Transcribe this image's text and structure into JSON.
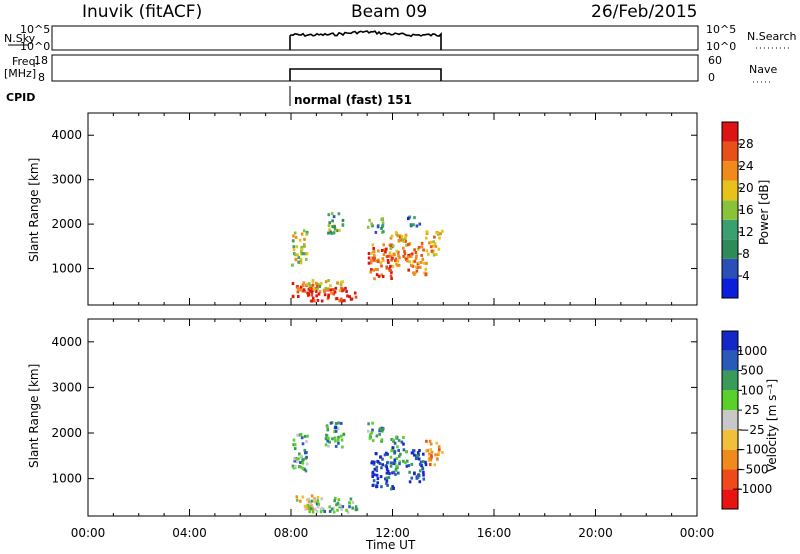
{
  "header": {
    "station": "Inuvik  (fitACF)",
    "beam": "Beam 09",
    "date": "26/Feb/2015"
  },
  "top_panels": {
    "nsky_label": "N.Sky",
    "nsky_ticks": [
      "10^5",
      "10^0"
    ],
    "nsearch_label": "N.Search",
    "nsearch_ticks": [
      "10^5",
      "10^0"
    ],
    "freq_label_1": "Freq.",
    "freq_label_2": "[MHz]",
    "freq_ticks": [
      "18",
      "8"
    ],
    "nave_label": "Nave",
    "nave_ticks": [
      "60",
      "0"
    ],
    "cpid_label": "CPID",
    "cpid_text": "normal (fast) 151"
  },
  "x_axis": {
    "label": "Time UT",
    "ticks": [
      "00:00",
      "04:00",
      "08:00",
      "12:00",
      "16:00",
      "20:00",
      "00:00"
    ]
  },
  "colors": {
    "power": [
      "#0a1edc",
      "#2a4fb8",
      "#2f8a5a",
      "#3aa070",
      "#8ac23a",
      "#e8c21a",
      "#f08a1a",
      "#e8501a",
      "#dc1414"
    ],
    "velocity": [
      "#e81414",
      "#f04a1a",
      "#f08a1a",
      "#f0c03a",
      "#c8c8c8",
      "#5ad02a",
      "#3a9a5a",
      "#2a5ab8",
      "#1428c8"
    ]
  },
  "chart_data": [
    {
      "type": "heatmap",
      "title": "Power",
      "xlabel": "Time UT",
      "ylabel": "Slant Range [km]",
      "xlim": [
        0,
        24
      ],
      "ylim": [
        180,
        4500
      ],
      "yticks": [
        "4000",
        "3000",
        "2000",
        "1000"
      ],
      "colorbar": {
        "label": "Power [dB]",
        "ticks": [
          "28",
          "24",
          "20",
          "16",
          "12",
          "8",
          "4"
        ]
      },
      "data_window_hours": [
        8,
        14
      ],
      "blobs": [
        {
          "t": 8.3,
          "r": 1500,
          "dt": 0.4,
          "dr": 500,
          "v": 0.55
        },
        {
          "t": 8.4,
          "r": 500,
          "dt": 0.6,
          "dr": 250,
          "v": 0.9
        },
        {
          "t": 9.6,
          "r": 450,
          "dt": 1.2,
          "dr": 200,
          "v": 0.95
        },
        {
          "t": 9.2,
          "r": 650,
          "dt": 1.0,
          "dr": 150,
          "v": 0.6
        },
        {
          "t": 9.7,
          "r": 2050,
          "dt": 0.4,
          "dr": 300,
          "v": 0.4
        },
        {
          "t": 11.5,
          "r": 1200,
          "dt": 0.6,
          "dr": 500,
          "v": 0.8
        },
        {
          "t": 12.2,
          "r": 1500,
          "dt": 0.4,
          "dr": 500,
          "v": 0.7
        },
        {
          "t": 12.9,
          "r": 1250,
          "dt": 0.5,
          "dr": 450,
          "v": 0.75
        },
        {
          "t": 13.6,
          "r": 1600,
          "dt": 0.4,
          "dr": 350,
          "v": 0.65
        },
        {
          "t": 11.3,
          "r": 2000,
          "dt": 0.4,
          "dr": 200,
          "v": 0.35
        },
        {
          "t": 12.8,
          "r": 2100,
          "dt": 0.3,
          "dr": 150,
          "v": 0.3
        }
      ]
    },
    {
      "type": "heatmap",
      "title": "Velocity",
      "xlabel": "Time UT",
      "ylabel": "Slant Range [km]",
      "xlim": [
        0,
        24
      ],
      "ylim": [
        180,
        4500
      ],
      "yticks": [
        "4000",
        "3000",
        "2000",
        "1000"
      ],
      "colorbar": {
        "label": "Velocity [m s⁻¹]",
        "ticks": [
          "1000",
          "500",
          "100",
          "25",
          "−25",
          "−100",
          "−500",
          "−1000"
        ]
      },
      "data_window_hours": [
        8,
        14
      ],
      "blobs": [
        {
          "t": 8.3,
          "r": 1600,
          "dt": 0.4,
          "dr": 500,
          "v": 0.7
        },
        {
          "t": 8.6,
          "r": 500,
          "dt": 0.6,
          "dr": 200,
          "v": 0.4
        },
        {
          "t": 9.6,
          "r": 450,
          "dt": 1.2,
          "dr": 200,
          "v": 0.65
        },
        {
          "t": 9.7,
          "r": 2000,
          "dt": 0.5,
          "dr": 350,
          "v": 0.7
        },
        {
          "t": 11.6,
          "r": 1200,
          "dt": 0.6,
          "dr": 500,
          "v": 0.9
        },
        {
          "t": 12.2,
          "r": 1550,
          "dt": 0.4,
          "dr": 500,
          "v": 0.75
        },
        {
          "t": 12.9,
          "r": 1300,
          "dt": 0.5,
          "dr": 450,
          "v": 0.85
        },
        {
          "t": 13.6,
          "r": 1600,
          "dt": 0.4,
          "dr": 350,
          "v": 0.3
        },
        {
          "t": 11.3,
          "r": 2050,
          "dt": 0.4,
          "dr": 250,
          "v": 0.65
        }
      ]
    }
  ]
}
